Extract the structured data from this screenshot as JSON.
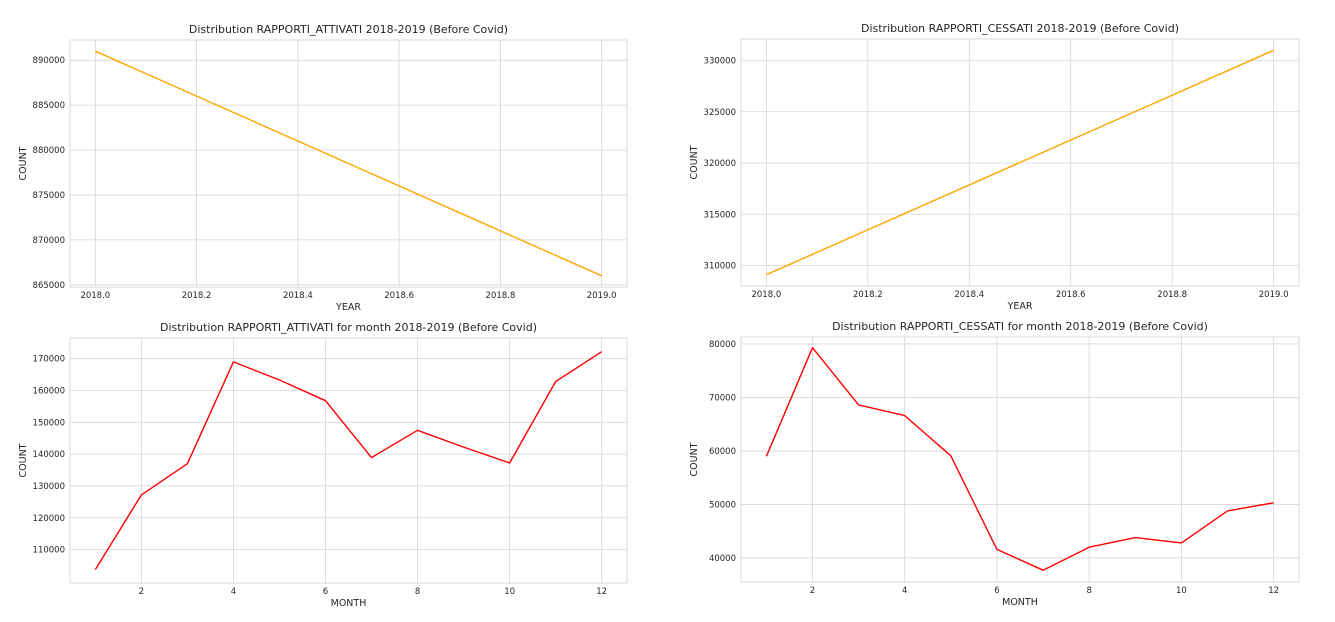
{
  "chart_data": [
    {
      "type": "line",
      "title": "Distribution RAPPORTI_ATTIVATI 2018-2019 (Before Covid)",
      "xlabel": "YEAR",
      "ylabel": "COUNT",
      "x": [
        2018.0,
        2019.0
      ],
      "series": [
        {
          "values": [
            891000,
            866000
          ],
          "color": "#ffa500"
        }
      ],
      "xticks": [
        2018.0,
        2018.2,
        2018.4,
        2018.6,
        2018.8,
        2019.0
      ],
      "xtick_labels": [
        "2018.0",
        "2018.2",
        "2018.4",
        "2018.6",
        "2018.8",
        "2019.0"
      ],
      "yticks": [
        865000,
        870000,
        875000,
        880000,
        885000,
        890000
      ],
      "ytick_labels": [
        "865000",
        "870000",
        "875000",
        "880000",
        "885000",
        "890000"
      ],
      "xlim": [
        2017.95,
        2019.05
      ],
      "ylim": [
        864750,
        892250
      ],
      "grid": true
    },
    {
      "type": "line",
      "title": "Distribution RAPPORTI_CESSATI 2018-2019 (Before Covid)",
      "xlabel": "YEAR",
      "ylabel": "COUNT",
      "x": [
        2018.0,
        2019.0
      ],
      "series": [
        {
          "values": [
            309100,
            331000
          ],
          "color": "#ffa500"
        }
      ],
      "xticks": [
        2018.0,
        2018.2,
        2018.4,
        2018.6,
        2018.8,
        2019.0
      ],
      "xtick_labels": [
        "2018.0",
        "2018.2",
        "2018.4",
        "2018.6",
        "2018.8",
        "2019.0"
      ],
      "yticks": [
        310000,
        315000,
        320000,
        325000,
        330000
      ],
      "ytick_labels": [
        "310000",
        "315000",
        "320000",
        "325000",
        "330000"
      ],
      "xlim": [
        2017.95,
        2019.05
      ],
      "ylim": [
        308000,
        332100
      ],
      "grid": true
    },
    {
      "type": "line",
      "title": "Distribution RAPPORTI_ATTIVATI for month 2018-2019 (Before Covid)",
      "xlabel": "MONTH",
      "ylabel": "COUNT",
      "x": [
        1,
        2,
        3,
        4,
        5,
        6,
        7,
        8,
        9,
        10,
        11,
        12
      ],
      "series": [
        {
          "values": [
            103700,
            127200,
            137000,
            169000,
            163300,
            156800,
            138900,
            147500,
            142200,
            137200,
            162800,
            172200
          ],
          "color": "#ff0000"
        }
      ],
      "xticks": [
        2,
        4,
        6,
        8,
        10,
        12
      ],
      "xtick_labels": [
        "2",
        "4",
        "6",
        "8",
        "10",
        "12"
      ],
      "yticks": [
        110000,
        120000,
        130000,
        140000,
        150000,
        160000,
        170000
      ],
      "ytick_labels": [
        "110000",
        "120000",
        "130000",
        "140000",
        "150000",
        "160000",
        "170000"
      ],
      "xlim": [
        0.45,
        12.55
      ],
      "ylim": [
        99500,
        176500
      ],
      "grid": true
    },
    {
      "type": "line",
      "title": "Distribution RAPPORTI_CESSATI for month 2018-2019 (Before Covid)",
      "xlabel": "MONTH",
      "ylabel": "COUNT",
      "x": [
        1,
        2,
        3,
        4,
        5,
        6,
        7,
        8,
        9,
        10,
        11,
        12
      ],
      "series": [
        {
          "values": [
            59000,
            79300,
            68600,
            66600,
            59100,
            41600,
            37700,
            42000,
            43800,
            42800,
            48800,
            50300
          ],
          "color": "#ff0000"
        }
      ],
      "xticks": [
        2,
        4,
        6,
        8,
        10,
        12
      ],
      "xtick_labels": [
        "2",
        "4",
        "6",
        "8",
        "10",
        "12"
      ],
      "yticks": [
        40000,
        50000,
        60000,
        70000,
        80000
      ],
      "ytick_labels": [
        "40000",
        "50000",
        "60000",
        "70000",
        "80000"
      ],
      "xlim": [
        0.45,
        12.55
      ],
      "ylim": [
        35500,
        81300
      ],
      "grid": true
    }
  ]
}
